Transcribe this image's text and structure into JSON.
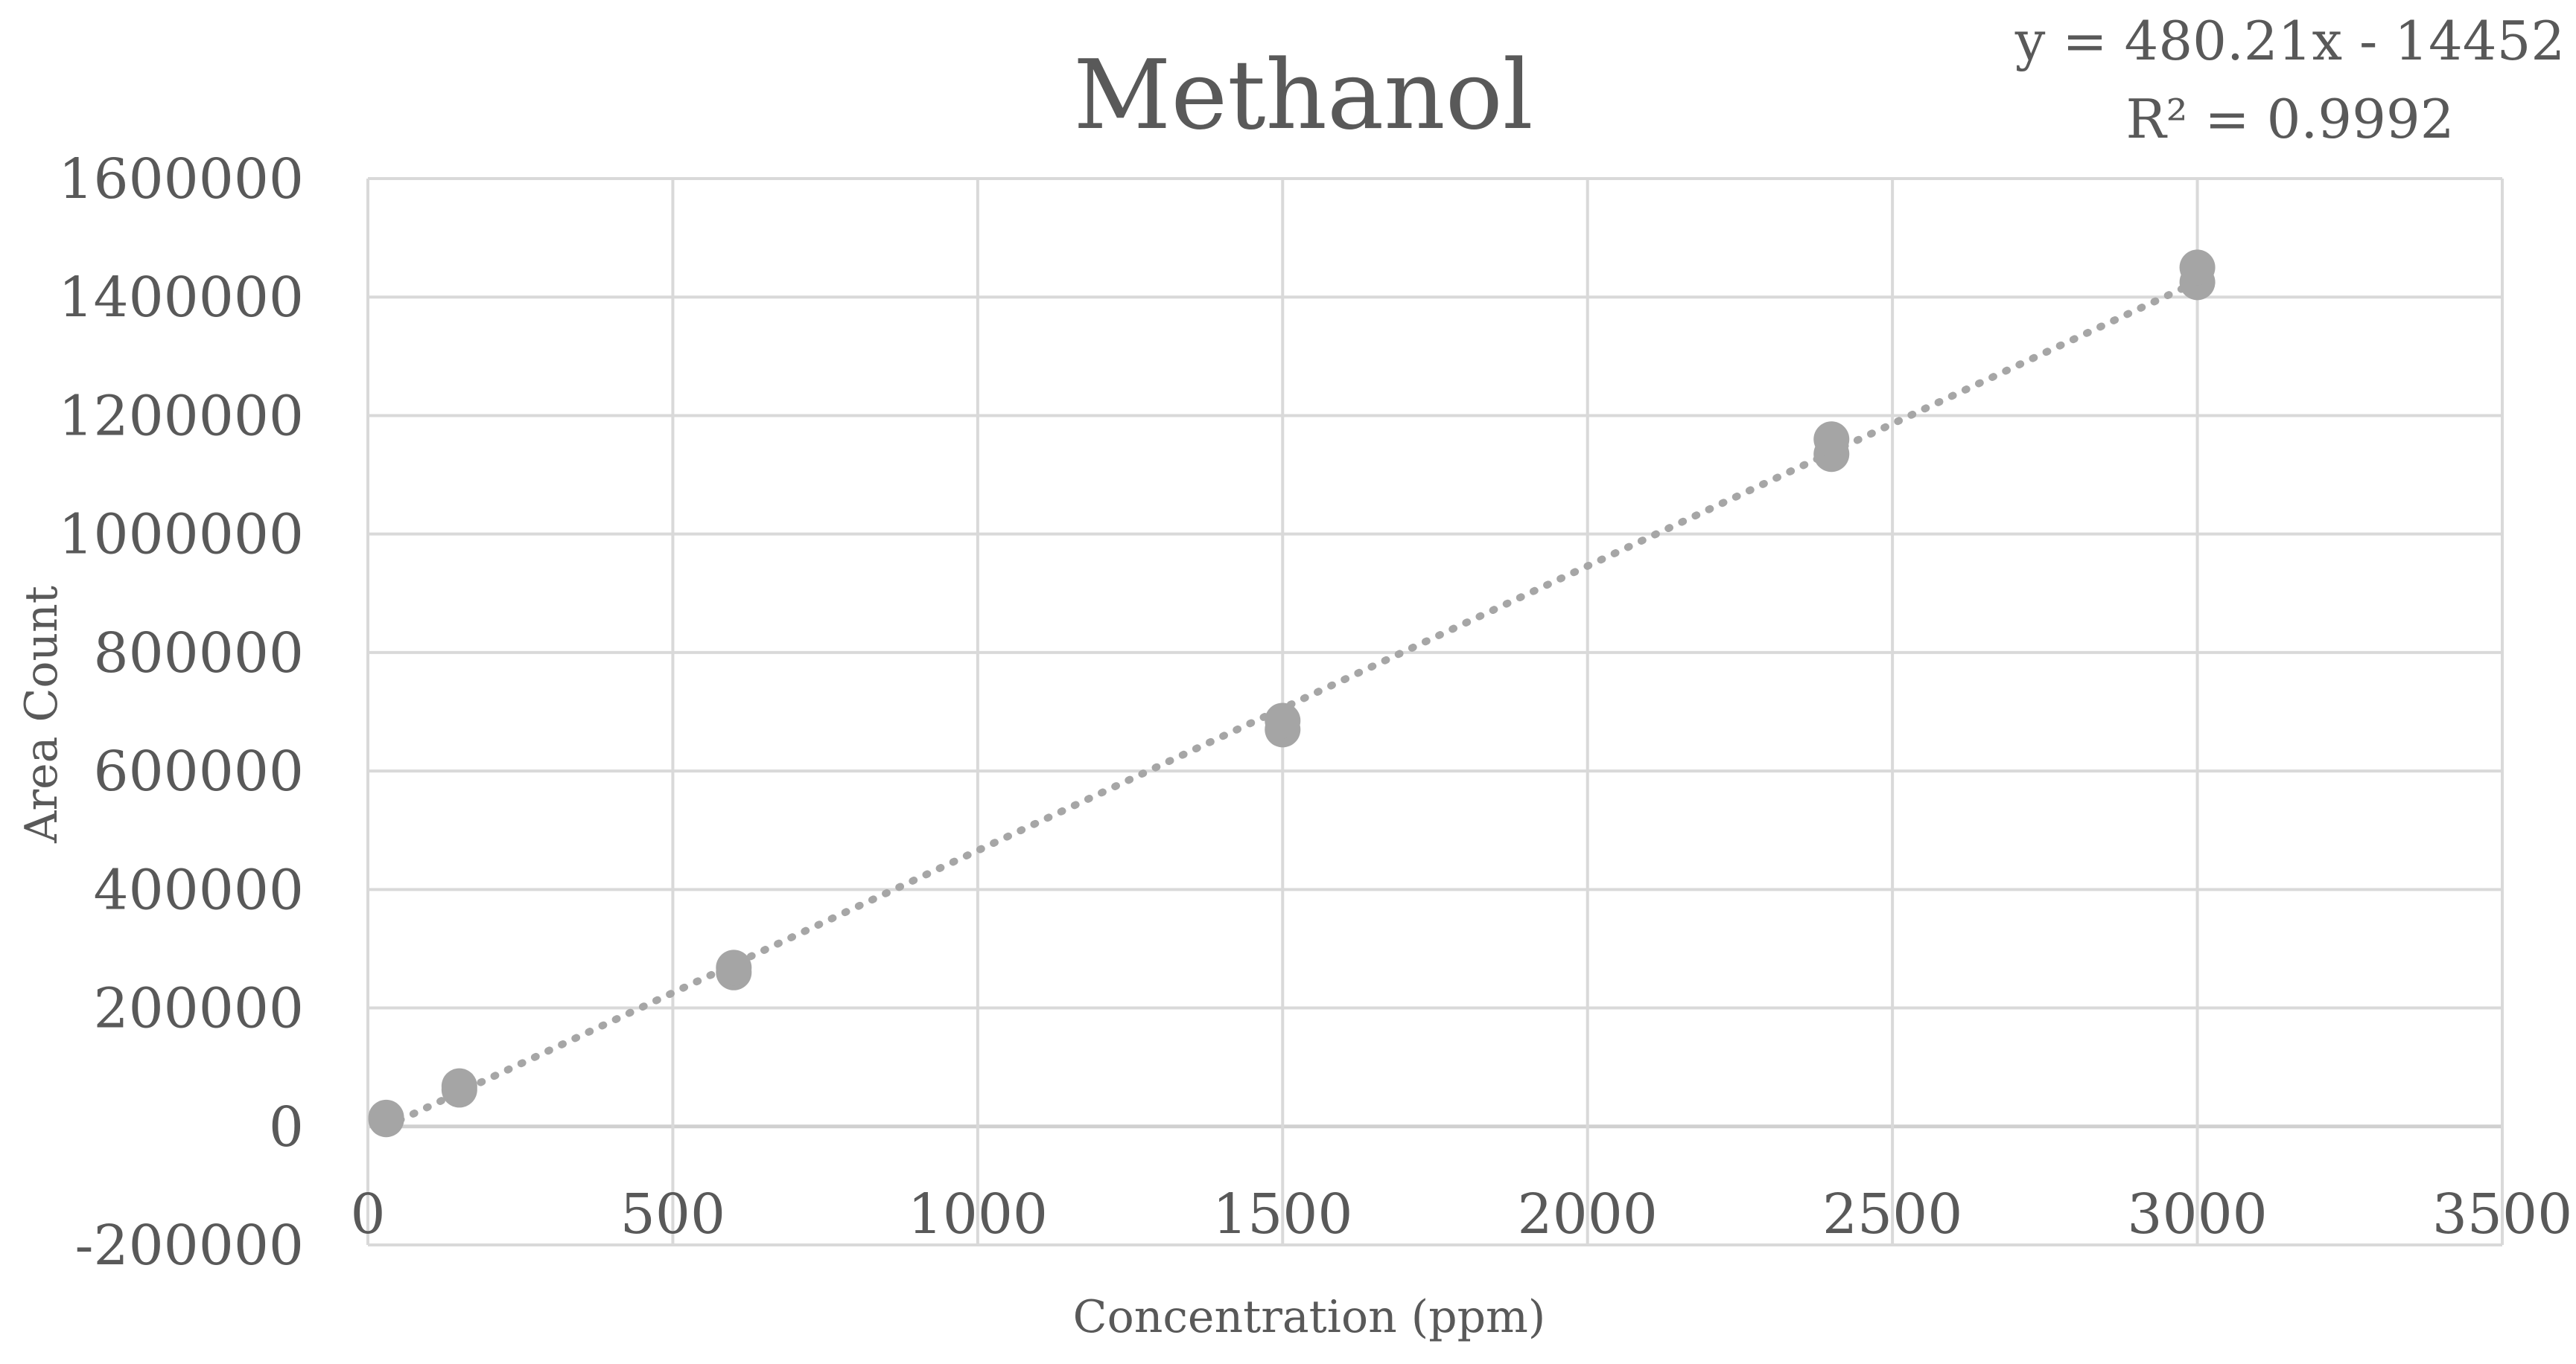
{
  "chart_data": {
    "type": "scatter",
    "title": "Methanol",
    "xlabel": "Concentration (ppm)",
    "ylabel": "Area Count",
    "xlim": [
      0,
      3500
    ],
    "ylim": [
      -200000,
      1600000
    ],
    "x_ticks": [
      "0",
      "500",
      "1000",
      "1500",
      "2000",
      "2500",
      "3000",
      "3500"
    ],
    "y_ticks": [
      "-200000",
      "0",
      "200000",
      "400000",
      "600000",
      "800000",
      "1000000",
      "1200000",
      "1400000",
      "1600000"
    ],
    "grid": true,
    "series": [
      {
        "name": "Methanol",
        "color": "#a5a5a5",
        "x": [
          30,
          30,
          150,
          150,
          600,
          600,
          1500,
          1500,
          2400,
          2400,
          3000,
          3000
        ],
        "y": [
          12000,
          15000,
          62000,
          68000,
          260000,
          268000,
          670000,
          685000,
          1135000,
          1160000,
          1425000,
          1450000
        ]
      }
    ],
    "trendline": {
      "type": "linear",
      "slope": 480.21,
      "intercept": -14452,
      "x_range": [
        30,
        3000
      ],
      "color": "#a6a6a6",
      "equation": "y = 480.21x - 14452",
      "r_squared": "R² = 0.9992"
    }
  }
}
